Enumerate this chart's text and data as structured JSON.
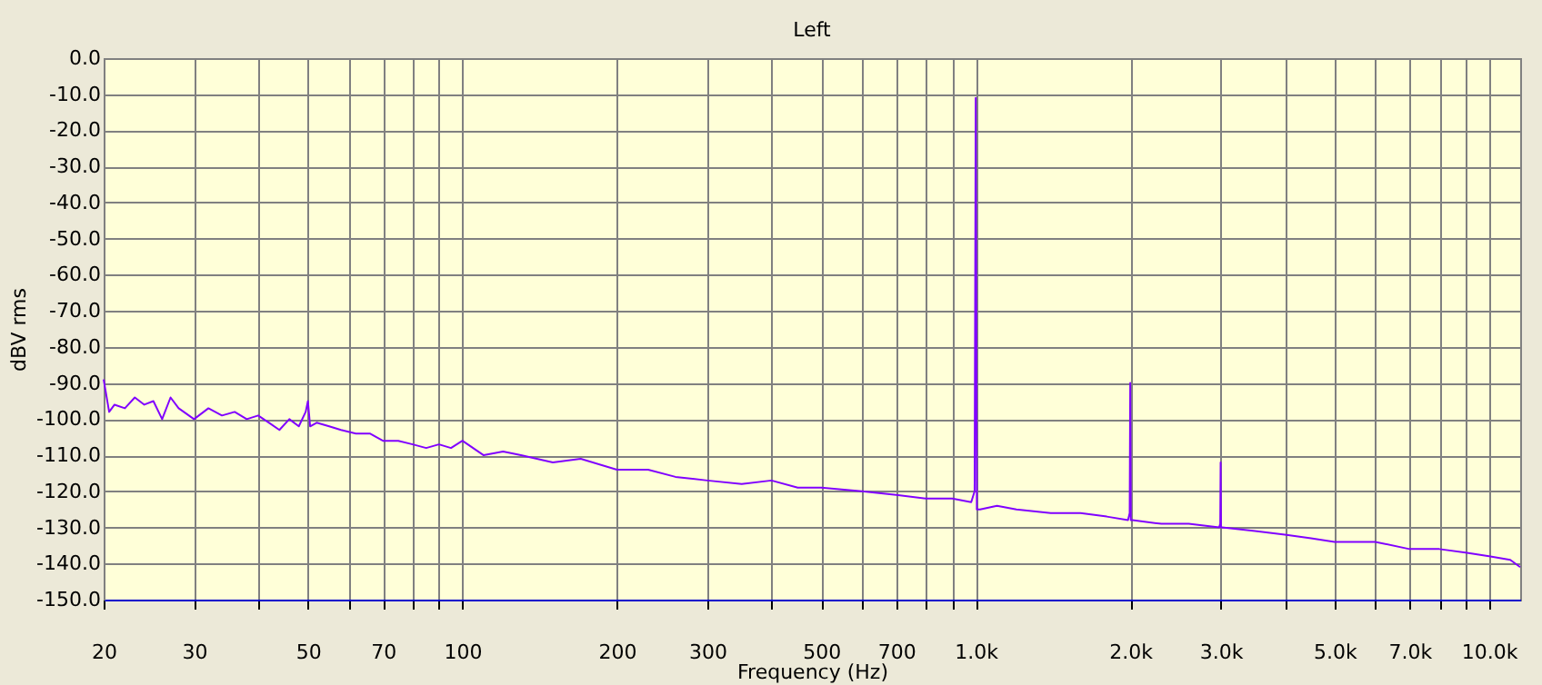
{
  "chart_data": {
    "type": "line",
    "title": "Left",
    "xlabel": "Frequency (Hz)",
    "ylabel": "dBV rms",
    "log": "x",
    "grid": true,
    "legend": false,
    "marker": "none",
    "line_style": "solid",
    "xlim": [
      20,
      11500
    ],
    "ylim": [
      -150,
      0
    ],
    "xticks": [
      20,
      30,
      {
        "value": 40,
        "label": null
      },
      50,
      {
        "value": 60,
        "label": null
      },
      70,
      {
        "value": 80,
        "label": null
      },
      {
        "value": 90,
        "label": null
      },
      100,
      200,
      300,
      {
        "value": 400,
        "label": null
      },
      500,
      {
        "value": 600,
        "label": null
      },
      700,
      {
        "value": 800,
        "label": null
      },
      {
        "value": 900,
        "label": null
      },
      {
        "value": 1000,
        "label": "1.0k"
      },
      {
        "value": 2000,
        "label": "2.0k"
      },
      {
        "value": 3000,
        "label": "3.0k"
      },
      {
        "value": 4000,
        "label": null
      },
      {
        "value": 5000,
        "label": "5.0k"
      },
      {
        "value": 6000,
        "label": null
      },
      {
        "value": 7000,
        "label": "7.0k"
      },
      {
        "value": 8000,
        "label": null
      },
      {
        "value": 9000,
        "label": null
      },
      {
        "value": 10000,
        "label": "10.0k"
      }
    ],
    "yticks": [
      {
        "value": 0,
        "label": "0.0"
      },
      {
        "value": -10,
        "label": "-10.0"
      },
      {
        "value": -20,
        "label": "-20.0"
      },
      {
        "value": -30,
        "label": "-30.0"
      },
      {
        "value": -40,
        "label": "-40.0"
      },
      {
        "value": -50,
        "label": "-50.0"
      },
      {
        "value": -60,
        "label": "-60.0"
      },
      {
        "value": -70,
        "label": "-70.0"
      },
      {
        "value": -80,
        "label": "-80.0"
      },
      {
        "value": -90,
        "label": "-90.0"
      },
      {
        "value": -100,
        "label": "-100.0"
      },
      {
        "value": -110,
        "label": "-110.0"
      },
      {
        "value": -120,
        "label": "-120.0"
      },
      {
        "value": -130,
        "label": "-130.0"
      },
      {
        "value": -140,
        "label": "-140.0"
      },
      {
        "value": -150,
        "label": "-150.0"
      }
    ],
    "series": [
      {
        "color": "#8000ff",
        "x": [
          20,
          20.5,
          21,
          22,
          23,
          24,
          25,
          26,
          27,
          28,
          30,
          32,
          34,
          36,
          38,
          40,
          42,
          44,
          46,
          48,
          49.5,
          50,
          50.5,
          52,
          55,
          58,
          62,
          66,
          70,
          75,
          80,
          85,
          90,
          95,
          100,
          110,
          120,
          130,
          150,
          170,
          200,
          230,
          260,
          300,
          350,
          400,
          450,
          500,
          600,
          700,
          800,
          900,
          980,
          995,
          1000,
          1005,
          1020,
          1100,
          1200,
          1400,
          1600,
          1800,
          1980,
          1995,
          2000,
          2005,
          2020,
          2300,
          2600,
          2980,
          2995,
          3000,
          3005,
          3020,
          3500,
          4000,
          4500,
          5000,
          6000,
          7000,
          8000,
          9000,
          10000,
          11000,
          11500
        ],
        "values": [
          -89,
          -98,
          -96,
          -97,
          -94,
          -96,
          -95,
          -100,
          -94,
          -97,
          -100,
          -97,
          -99,
          -98,
          -100,
          -99,
          -101,
          -103,
          -100,
          -102,
          -98,
          -95,
          -102,
          -101,
          -102,
          -103,
          -104,
          -104,
          -106,
          -106,
          -107,
          -108,
          -107,
          -108,
          -106,
          -110,
          -109,
          -110,
          -112,
          -111,
          -114,
          -114,
          -116,
          -117,
          -118,
          -117,
          -119,
          -119,
          -120,
          -121,
          -122,
          -122,
          -123,
          -120,
          -11,
          -125,
          -125,
          -124,
          -125,
          -126,
          -126,
          -127,
          -128,
          -126,
          -90,
          -128,
          -128,
          -129,
          -129,
          -130,
          -129,
          -112,
          -130,
          -130,
          -131,
          -132,
          -133,
          -134,
          -134,
          -136,
          -136,
          -137,
          -138,
          -139,
          -141
        ]
      }
    ]
  }
}
